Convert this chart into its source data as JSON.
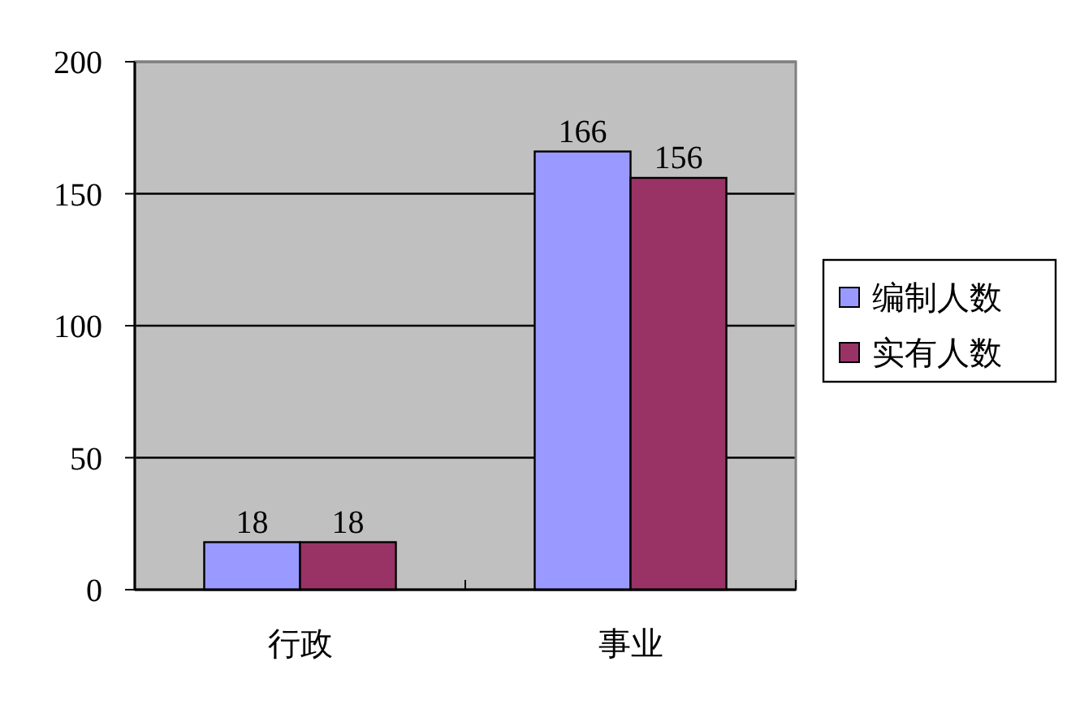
{
  "chart_data": {
    "type": "bar",
    "categories": [
      "行政",
      "事业"
    ],
    "series": [
      {
        "name": "编制人数",
        "color": "#9999ff",
        "values": [
          18,
          166
        ]
      },
      {
        "name": "实有人数",
        "color": "#993366",
        "values": [
          18,
          156
        ]
      }
    ],
    "ylim": [
      0,
      200
    ],
    "yticks": [
      0,
      50,
      100,
      150,
      200
    ],
    "grid": "y",
    "legend": "right",
    "data_labels": true
  }
}
